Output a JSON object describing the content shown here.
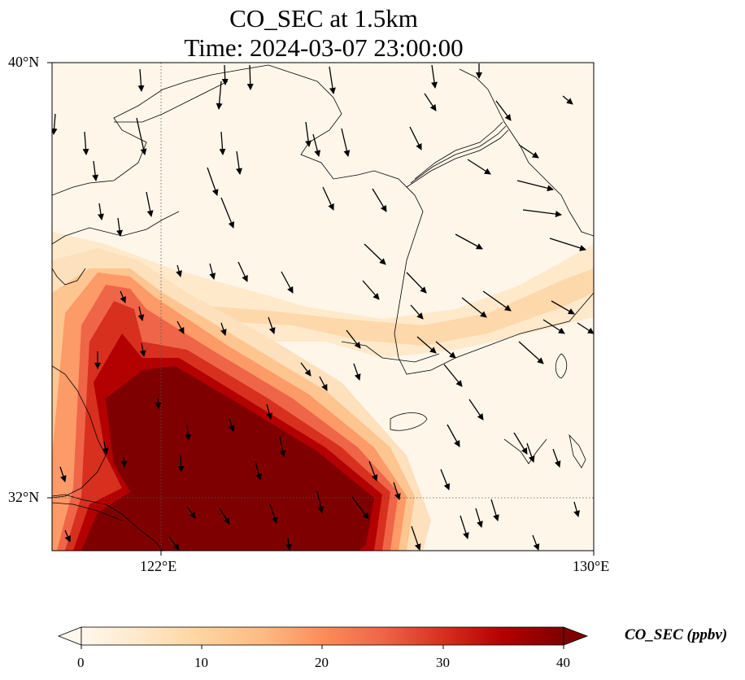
{
  "title": {
    "line1": "CO_SEC at 1.5km",
    "line2": "Time: 2024-03-07 23:00:00"
  },
  "map": {
    "lon_range": [
      119.5,
      130
    ],
    "lat_range": [
      31,
      40
    ],
    "gridlines": {
      "style": "dotted",
      "lons": [
        122
      ],
      "lats": [
        32
      ]
    },
    "lat_tick_labels": [
      "40°N",
      "32°N"
    ],
    "lon_tick_labels": [
      "122°E",
      "130°E"
    ],
    "field": "CO_SEC",
    "field_description": "high concentration plume over East China Sea / Yellow Sea south-west quadrant",
    "features": [
      "coastlines",
      "wind-vectors"
    ]
  },
  "colorbar": {
    "title": "CO_SEC (ppbv)",
    "ticks": [
      "0",
      "10",
      "20",
      "30",
      "40"
    ],
    "range": [
      0,
      40
    ],
    "colormap": "OrRd",
    "extend": "both",
    "colors": [
      "#fff7ec",
      "#fee8c8",
      "#fdd49e",
      "#fdbb84",
      "#fc8d59",
      "#ef6548",
      "#d7301f",
      "#b30000",
      "#7f0000"
    ]
  }
}
